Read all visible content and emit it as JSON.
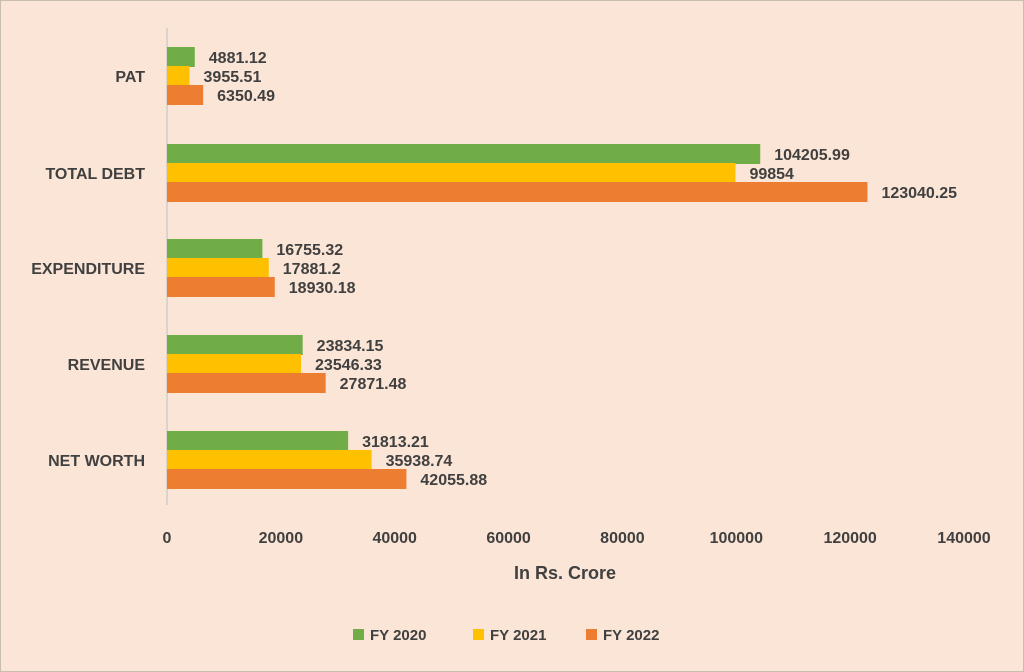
{
  "chart_data": {
    "type": "bar",
    "orientation": "horizontal",
    "categories": [
      "NET WORTH",
      "REVENUE",
      "EXPENDITURE",
      "TOTAL DEBT",
      "PAT"
    ],
    "series": [
      {
        "name": "FY 2020",
        "color": "#70ad47",
        "values": [
          31813.21,
          23834.15,
          16755.32,
          104205.99,
          4881.12
        ]
      },
      {
        "name": "FY 2021",
        "color": "#ffc000",
        "values": [
          35938.74,
          23546.33,
          17881.2,
          99854,
          3955.51
        ]
      },
      {
        "name": "FY 2022",
        "color": "#ed7d31",
        "values": [
          42055.88,
          27871.48,
          18930.18,
          123040.25,
          6350.49
        ]
      }
    ],
    "value_labels": [
      [
        "31813.21",
        "23834.15",
        "16755.32",
        "104205.99",
        "4881.12"
      ],
      [
        "35938.74",
        "23546.33",
        "17881.2",
        "99854",
        "3955.51"
      ],
      [
        "42055.88",
        "27871.48",
        "18930.18",
        "123040.25",
        "6350.49"
      ]
    ],
    "xlabel": "In Rs. Crore",
    "xlim": [
      0,
      140000
    ],
    "x_ticks": [
      0,
      20000,
      40000,
      60000,
      80000,
      100000,
      120000,
      140000
    ],
    "x_tick_labels": [
      "0",
      "20000",
      "40000",
      "60000",
      "80000",
      "100000",
      "120000",
      "140000"
    ],
    "grid": false,
    "legend_position": "bottom",
    "background": "#fbe5d6"
  }
}
